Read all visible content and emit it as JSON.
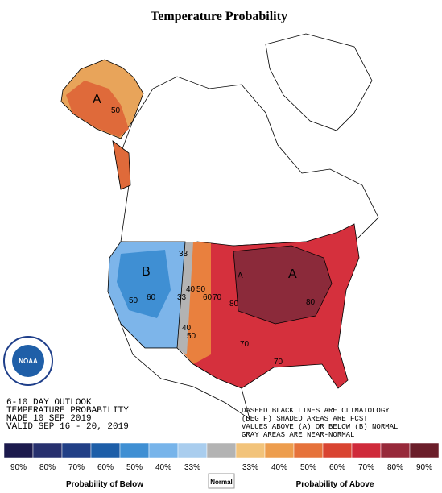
{
  "header": {
    "title": "Temperature Probability"
  },
  "map": {
    "labels": [
      "A",
      "50",
      "A",
      "B",
      "33",
      "40",
      "50",
      "60",
      "70",
      "50",
      "60",
      "80",
      "A",
      "80",
      "70",
      "70",
      "33",
      "40",
      "50"
    ]
  },
  "outlook": [
    "6-10 DAY OUTLOOK",
    "TEMPERATURE PROBABILITY",
    "MADE  10 SEP 2019",
    "VALID  SEP 16 - 20, 2019"
  ],
  "notes": [
    "DASHED BLACK LINES ARE CLIMATOLOGY",
    "(DEG F) SHADED AREAS ARE FCST",
    "VALUES ABOVE (A) OR BELOW (B) NORMAL",
    "GRAY AREAS ARE NEAR-NORMAL"
  ],
  "logo": "NOAA",
  "legend": {
    "below": [
      {
        "label": "90%",
        "color": "#1c1a4d"
      },
      {
        "label": "80%",
        "color": "#27306e"
      },
      {
        "label": "70%",
        "color": "#213f86"
      },
      {
        "label": "60%",
        "color": "#1d5ea8"
      },
      {
        "label": "50%",
        "color": "#3f8fd3"
      },
      {
        "label": "40%",
        "color": "#77b4ea"
      },
      {
        "label": "33%",
        "color": "#a9cdee"
      }
    ],
    "normal": {
      "label": "Normal",
      "color": "#b3b3b3"
    },
    "above": [
      {
        "label": "33%",
        "color": "#f2c37a"
      },
      {
        "label": "40%",
        "color": "#ed9d4d"
      },
      {
        "label": "50%",
        "color": "#e6723a"
      },
      {
        "label": "60%",
        "color": "#d94431"
      },
      {
        "label": "70%",
        "color": "#cf2a3a"
      },
      {
        "label": "80%",
        "color": "#97293a"
      },
      {
        "label": "90%",
        "color": "#6b1e2a"
      }
    ],
    "below_title": "Probability of Below",
    "above_title": "Probability of Above"
  }
}
